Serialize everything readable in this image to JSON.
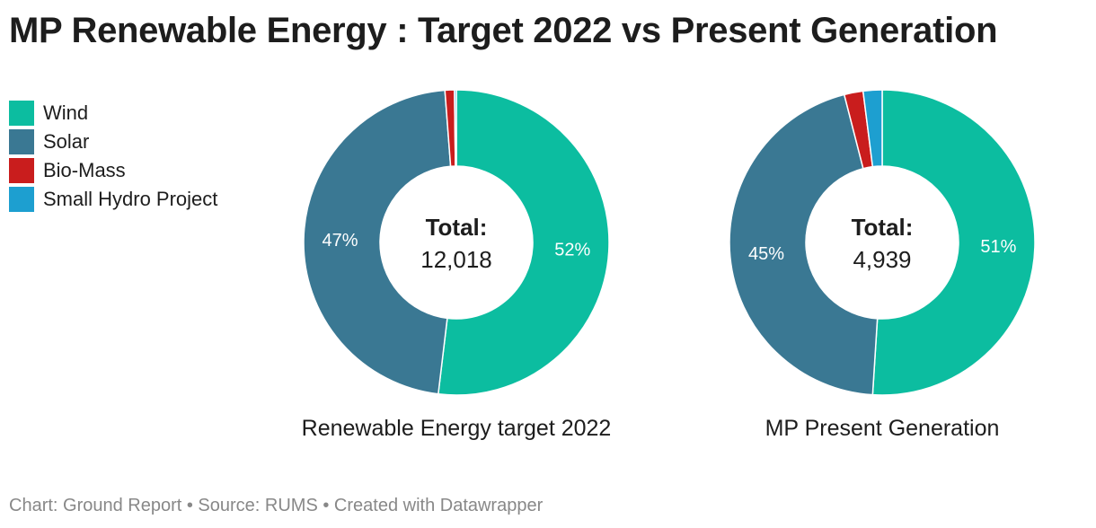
{
  "title": "MP Renewable Energy : Target 2022 vs Present Generation",
  "footer": "Chart: Ground Report • Source: RUMS • Created with Datawrapper",
  "center_label": "Total:",
  "chart_data": {
    "type": "pie",
    "legend": [
      {
        "name": "Wind",
        "color": "#0cbda0"
      },
      {
        "name": "Solar",
        "color": "#3a7893"
      },
      {
        "name": "Bio-Mass",
        "color": "#c91d1d"
      },
      {
        "name": "Small Hydro Project",
        "color": "#1d9fd0"
      }
    ],
    "charts": [
      {
        "title": "Renewable Energy target 2022",
        "total": "12,018",
        "values": [
          52,
          47,
          1,
          0.2
        ],
        "labels": [
          "52%",
          "47%",
          "",
          ""
        ]
      },
      {
        "title": "MP Present Generation",
        "total": "4,939",
        "values": [
          51,
          45,
          2,
          2
        ],
        "labels": [
          "51%",
          "45%",
          "",
          ""
        ]
      }
    ]
  }
}
